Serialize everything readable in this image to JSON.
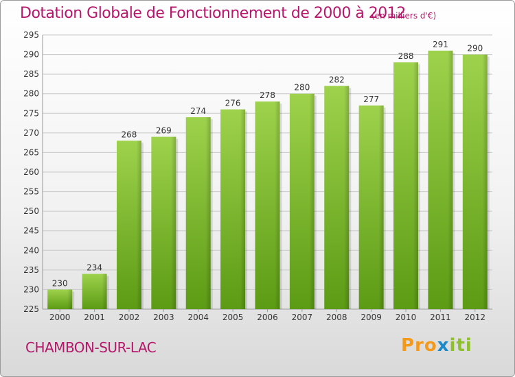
{
  "header": {
    "title": "Dotation Globale de Fonctionnement de 2000 à 2012",
    "unit_note": "(en milliers d'€)"
  },
  "footer": {
    "commune": "CHAMBON-SUR-LAC",
    "brand_part1": "Pro",
    "brand_part2": "x",
    "brand_part3": "iti"
  },
  "colors": {
    "accent": "#b5176a",
    "bar_top": "#9ed24c",
    "bar_bottom": "#5c9b14",
    "grid": "#c8c8c8"
  },
  "chart_data": {
    "type": "bar",
    "categories": [
      "2000",
      "2001",
      "2002",
      "2003",
      "2004",
      "2005",
      "2006",
      "2007",
      "2008",
      "2009",
      "2010",
      "2011",
      "2012"
    ],
    "values": [
      230,
      234,
      268,
      269,
      274,
      276,
      278,
      280,
      282,
      277,
      288,
      291,
      290
    ],
    "title": "Dotation Globale de Fonctionnement de 2000 à 2012",
    "xlabel": "",
    "ylabel": "",
    "ylim": [
      225,
      295
    ],
    "yticks": [
      225,
      230,
      235,
      240,
      245,
      250,
      255,
      260,
      265,
      270,
      275,
      280,
      285,
      290,
      295
    ],
    "grid": true,
    "data_labels": true
  }
}
